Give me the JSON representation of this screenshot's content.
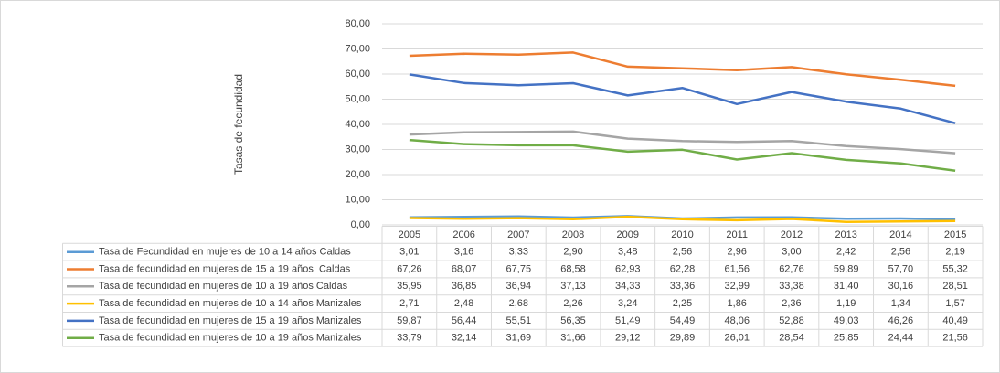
{
  "chart_data": {
    "type": "line",
    "y_label": "Tasas de fecundidad",
    "categories": [
      "2005",
      "2006",
      "2007",
      "2008",
      "2009",
      "2010",
      "2011",
      "2012",
      "2013",
      "2014",
      "2015"
    ],
    "ylim": [
      0,
      80
    ],
    "yticks": [
      {
        "value": 0,
        "label": "0,00"
      },
      {
        "value": 10,
        "label": "10,00"
      },
      {
        "value": 20,
        "label": "20,00"
      },
      {
        "value": 30,
        "label": "30,00"
      },
      {
        "value": 40,
        "label": "40,00"
      },
      {
        "value": 50,
        "label": "50,00"
      },
      {
        "value": 60,
        "label": "60,00"
      },
      {
        "value": 70,
        "label": "70,00"
      },
      {
        "value": 80,
        "label": "80,00"
      }
    ],
    "grid": true,
    "series": [
      {
        "name": "Tasa de Fecundidad en mujeres de 10 a 14 años Caldas",
        "color": "#5b9bd5",
        "values": [
          3.01,
          3.16,
          3.33,
          2.9,
          3.48,
          2.56,
          2.96,
          3.0,
          2.42,
          2.56,
          2.19
        ],
        "value_labels": [
          "3,01",
          "3,16",
          "3,33",
          "2,90",
          "3,48",
          "2,56",
          "2,96",
          "3,00",
          "2,42",
          "2,56",
          "2,19"
        ]
      },
      {
        "name": "Tasa de fecundidad en mujeres de 15 a 19 años  Caldas",
        "color": "#ed7d31",
        "values": [
          67.26,
          68.07,
          67.75,
          68.58,
          62.93,
          62.28,
          61.56,
          62.76,
          59.89,
          57.7,
          55.32
        ],
        "value_labels": [
          "67,26",
          "68,07",
          "67,75",
          "68,58",
          "62,93",
          "62,28",
          "61,56",
          "62,76",
          "59,89",
          "57,70",
          "55,32"
        ]
      },
      {
        "name": "Tasa de fecundidad en mujeres de 10 a 19 años Caldas",
        "color": "#a5a5a5",
        "values": [
          35.95,
          36.85,
          36.94,
          37.13,
          34.33,
          33.36,
          32.99,
          33.38,
          31.4,
          30.16,
          28.51
        ],
        "value_labels": [
          "35,95",
          "36,85",
          "36,94",
          "37,13",
          "34,33",
          "33,36",
          "32,99",
          "33,38",
          "31,40",
          "30,16",
          "28,51"
        ]
      },
      {
        "name": "Tasa de fecundidad en mujeres de 10 a 14 años Manizales",
        "color": "#ffc000",
        "values": [
          2.71,
          2.48,
          2.68,
          2.26,
          3.24,
          2.25,
          1.86,
          2.36,
          1.19,
          1.34,
          1.57
        ],
        "value_labels": [
          "2,71",
          "2,48",
          "2,68",
          "2,26",
          "3,24",
          "2,25",
          "1,86",
          "2,36",
          "1,19",
          "1,34",
          "1,57"
        ]
      },
      {
        "name": "Tasa de fecundidad en mujeres de 15 a 19 años Manizales",
        "color": "#4472c4",
        "values": [
          59.87,
          56.44,
          55.51,
          56.35,
          51.49,
          54.49,
          48.06,
          52.88,
          49.03,
          46.26,
          40.49
        ],
        "value_labels": [
          "59,87",
          "56,44",
          "55,51",
          "56,35",
          "51,49",
          "54,49",
          "48,06",
          "52,88",
          "49,03",
          "46,26",
          "40,49"
        ]
      },
      {
        "name": "Tasa de fecundidad en mujeres de 10 a 19 años Manizales",
        "color": "#70ad47",
        "values": [
          33.79,
          32.14,
          31.69,
          31.66,
          29.12,
          29.89,
          26.01,
          28.54,
          25.85,
          24.44,
          21.56
        ],
        "value_labels": [
          "33,79",
          "32,14",
          "31,69",
          "31,66",
          "29,12",
          "29,89",
          "26,01",
          "28,54",
          "25,85",
          "24,44",
          "21,56"
        ]
      }
    ]
  }
}
